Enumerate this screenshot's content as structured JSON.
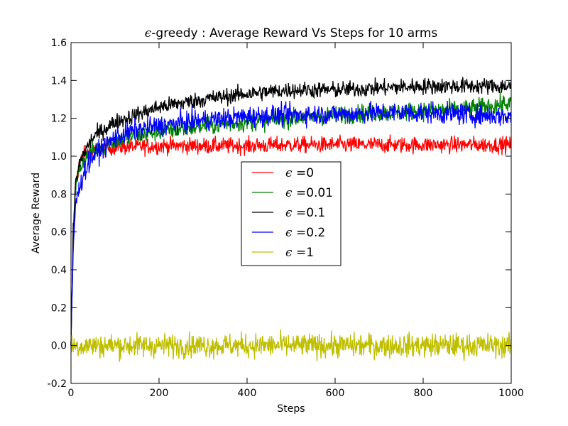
{
  "chart_data": {
    "type": "line",
    "title_prefix": "ϵ",
    "title_rest": "-greedy : Average Reward Vs Steps for 10 arms",
    "xlabel": "Steps",
    "ylabel": "Average Reward",
    "xlim": [
      0,
      1000
    ],
    "ylim": [
      -0.2,
      1.6
    ],
    "xticks": [
      "0",
      "200",
      "400",
      "600",
      "800",
      "1000"
    ],
    "yticks": [
      "-0.2",
      "0.0",
      "0.2",
      "0.4",
      "0.6",
      "0.8",
      "1.0",
      "1.2",
      "1.4",
      "1.6"
    ],
    "grid": false,
    "legend_position": "center",
    "series": [
      {
        "name": "0",
        "color": "#ff0000",
        "points": [
          [
            0,
            0
          ],
          [
            5,
            0.55
          ],
          [
            10,
            0.85
          ],
          [
            20,
            0.97
          ],
          [
            30,
            1.01
          ],
          [
            50,
            1.03
          ],
          [
            80,
            1.04
          ],
          [
            100,
            1.05
          ],
          [
            150,
            1.05
          ],
          [
            200,
            1.055
          ],
          [
            300,
            1.055
          ],
          [
            400,
            1.055
          ],
          [
            500,
            1.06
          ],
          [
            600,
            1.06
          ],
          [
            700,
            1.06
          ],
          [
            800,
            1.06
          ],
          [
            900,
            1.06
          ],
          [
            1000,
            1.06
          ]
        ],
        "noise": 0.022
      },
      {
        "name": "0.01",
        "color": "#008000",
        "points": [
          [
            0,
            0
          ],
          [
            5,
            0.55
          ],
          [
            10,
            0.82
          ],
          [
            20,
            0.94
          ],
          [
            30,
            0.98
          ],
          [
            50,
            1.03
          ],
          [
            80,
            1.06
          ],
          [
            100,
            1.08
          ],
          [
            150,
            1.11
          ],
          [
            200,
            1.13
          ],
          [
            300,
            1.16
          ],
          [
            400,
            1.18
          ],
          [
            500,
            1.2
          ],
          [
            600,
            1.22
          ],
          [
            700,
            1.23
          ],
          [
            800,
            1.24
          ],
          [
            900,
            1.25
          ],
          [
            1000,
            1.28
          ]
        ],
        "noise": 0.025
      },
      {
        "name": "0.1",
        "color": "#000000",
        "points": [
          [
            0,
            0
          ],
          [
            5,
            0.6
          ],
          [
            10,
            0.85
          ],
          [
            20,
            0.97
          ],
          [
            30,
            1.02
          ],
          [
            50,
            1.1
          ],
          [
            80,
            1.15
          ],
          [
            100,
            1.18
          ],
          [
            150,
            1.22
          ],
          [
            200,
            1.26
          ],
          [
            300,
            1.3
          ],
          [
            400,
            1.33
          ],
          [
            500,
            1.35
          ],
          [
            600,
            1.35
          ],
          [
            700,
            1.36
          ],
          [
            800,
            1.37
          ],
          [
            900,
            1.37
          ],
          [
            1000,
            1.37
          ]
        ],
        "noise": 0.022
      },
      {
        "name": "0.2",
        "color": "#0000ff",
        "points": [
          [
            0,
            0
          ],
          [
            5,
            0.5
          ],
          [
            10,
            0.74
          ],
          [
            20,
            0.84
          ],
          [
            30,
            0.92
          ],
          [
            50,
            1.0
          ],
          [
            80,
            1.06
          ],
          [
            100,
            1.1
          ],
          [
            150,
            1.14
          ],
          [
            200,
            1.16
          ],
          [
            300,
            1.19
          ],
          [
            400,
            1.21
          ],
          [
            500,
            1.22
          ],
          [
            600,
            1.22
          ],
          [
            700,
            1.23
          ],
          [
            800,
            1.23
          ],
          [
            900,
            1.22
          ],
          [
            1000,
            1.21
          ]
        ],
        "noise": 0.028
      },
      {
        "name": "1",
        "color": "#bfbf00",
        "points": [
          [
            0,
            0
          ],
          [
            1000,
            0
          ]
        ],
        "noise": 0.032
      }
    ]
  }
}
